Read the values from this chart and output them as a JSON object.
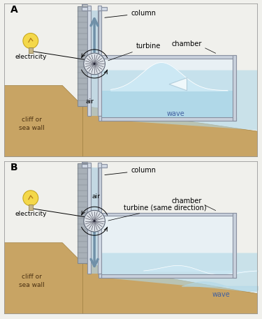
{
  "bg_color": "#f0f0ec",
  "panel_bg": "#f8f8f4",
  "border_color": "#999999",
  "ground_color": "#c8a464",
  "sea_floor_color": "#c8a464",
  "water_color": "#b0d8e8",
  "water_light": "#cce8f4",
  "column_fill": "#d0d8e4",
  "column_edge": "#8890a0",
  "wall_fill": "#a8b0b8",
  "wall_edge": "#808890",
  "chamber_fill": "#c8d0dc",
  "chamber_edge": "#8890a0",
  "arrow_fill": "#b0cfe0",
  "arrow_edge": "#7090a8",
  "bulb_fill": "#f4d84a",
  "bulb_edge": "#c8a820",
  "bulb_base": "#c8b888",
  "label_A": "A",
  "label_B": "B",
  "lbl_column": "column",
  "lbl_turbine_A": "turbine",
  "lbl_turbine_B": "turbine (same direction)",
  "lbl_electricity": "electricity",
  "lbl_cliff": "cliff or\nsea wall",
  "lbl_air_A": "air",
  "lbl_air_B": "air",
  "lbl_chamber": "chamber",
  "lbl_wave_A": "wave",
  "lbl_wave_B": "wave"
}
